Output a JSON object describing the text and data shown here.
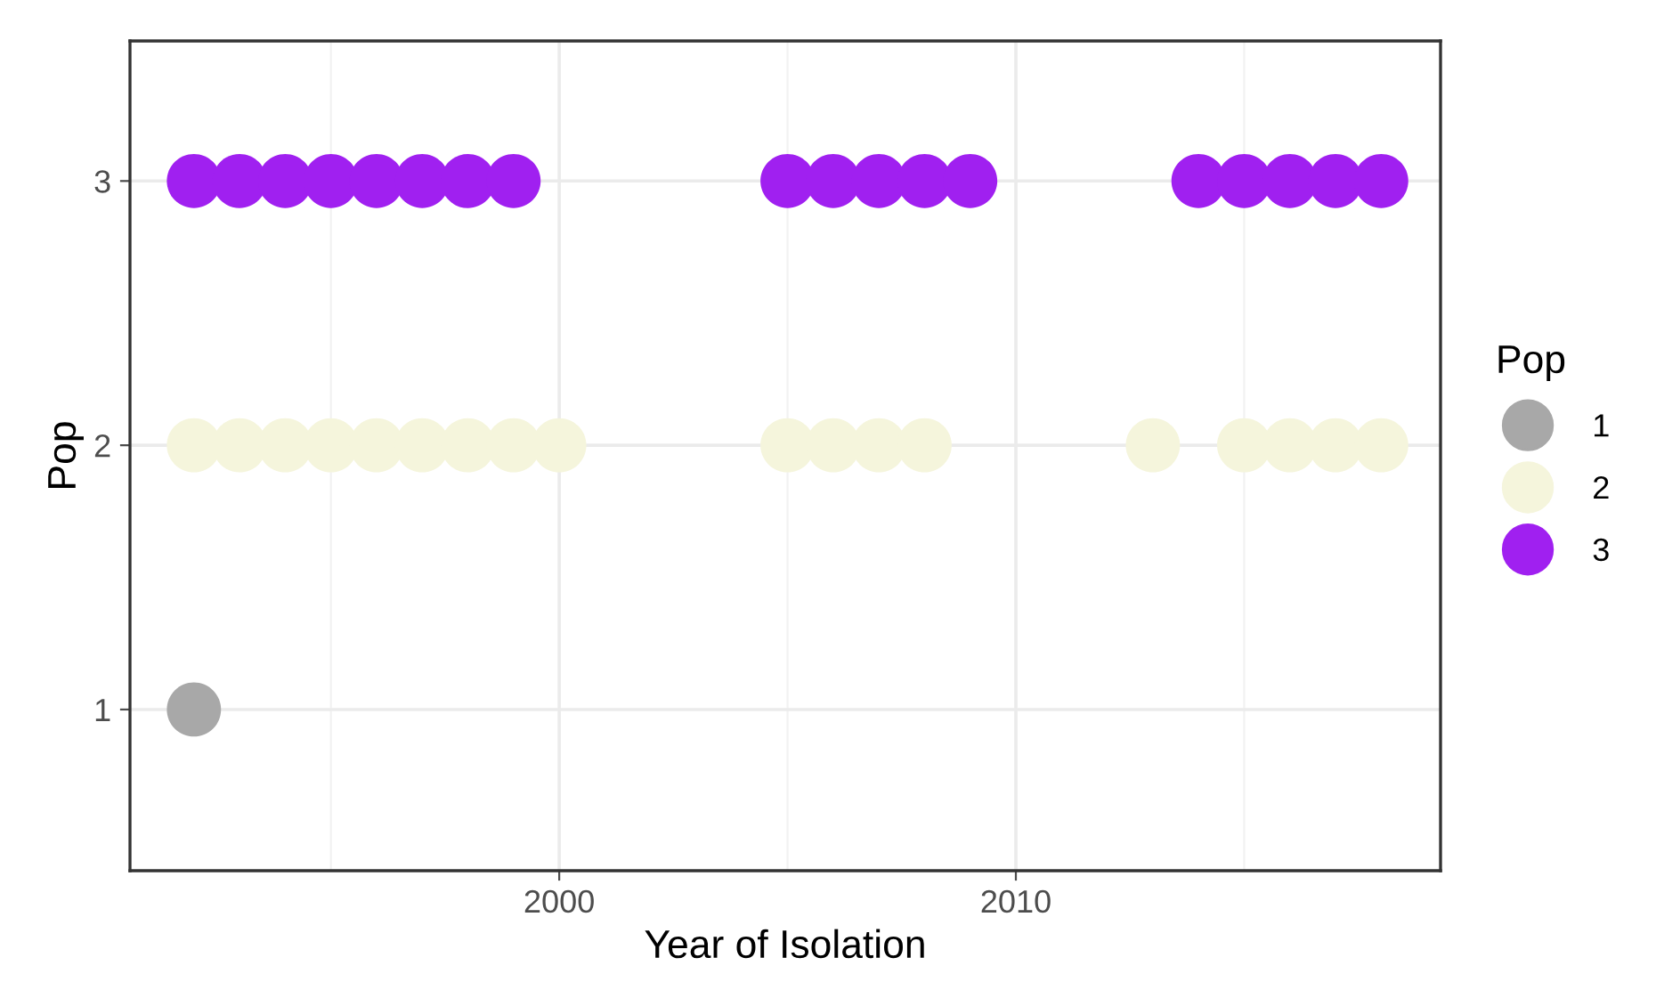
{
  "chart_data": {
    "type": "scatter",
    "xlabel": "Year of Isolation",
    "ylabel": "Pop",
    "legend_title": "Pop",
    "xlim": [
      1990.6,
      2019.3
    ],
    "ylim": [
      0.39,
      3.53
    ],
    "xticks": [
      2000,
      2010
    ],
    "yticks": [
      1,
      2,
      3
    ],
    "grid": true,
    "legend": "right",
    "marker": "circle",
    "series": [
      {
        "name": "1",
        "color": "#a8a8a8",
        "x": [
          1992
        ],
        "values": [
          1
        ]
      },
      {
        "name": "2",
        "color": "#f5f5dc",
        "x": [
          1992,
          1993,
          1994,
          1995,
          1996,
          1997,
          1998,
          1999,
          2000,
          2005,
          2006,
          2007,
          2008,
          2013,
          2015,
          2016,
          2017,
          2018
        ],
        "values": [
          2,
          2,
          2,
          2,
          2,
          2,
          2,
          2,
          2,
          2,
          2,
          2,
          2,
          2,
          2,
          2,
          2,
          2
        ]
      },
      {
        "name": "3",
        "color": "#a020f0",
        "x": [
          1992,
          1993,
          1994,
          1995,
          1996,
          1997,
          1998,
          1999,
          2005,
          2006,
          2007,
          2008,
          2009,
          2014,
          2015,
          2016,
          2017,
          2018
        ],
        "values": [
          3,
          3,
          3,
          3,
          3,
          3,
          3,
          3,
          3,
          3,
          3,
          3,
          3,
          3,
          3,
          3,
          3,
          3
        ]
      }
    ]
  }
}
